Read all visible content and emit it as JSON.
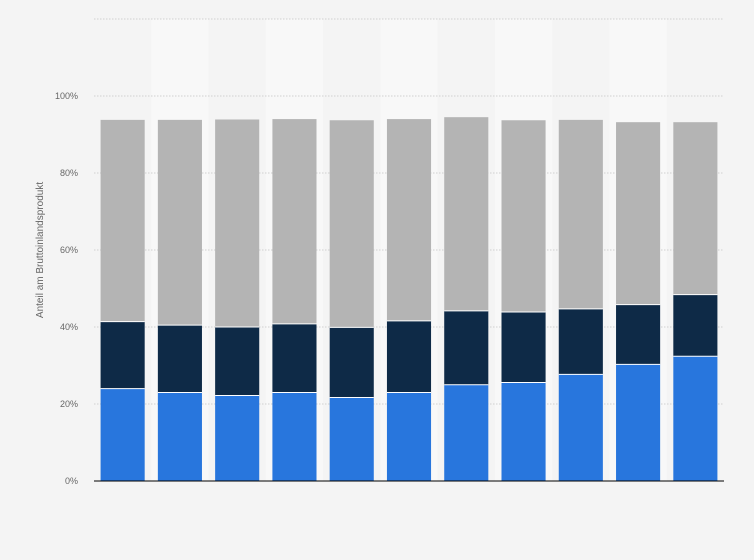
{
  "chart_data": {
    "type": "bar",
    "stacked": true,
    "orientation": "vertical",
    "title": "",
    "xlabel": "",
    "ylabel": "Anteil am Bruttoinlandsprodukt",
    "categories": [
      "",
      "",
      "",
      "",
      "",
      "",
      "",
      "",
      "",
      "",
      ""
    ],
    "y_ticks": [
      "0%",
      "20%",
      "40%",
      "60%",
      "80%",
      "100%"
    ],
    "ylim": [
      0,
      120
    ],
    "grid": true,
    "legend": "none",
    "series": [
      {
        "color": "#2876dd",
        "values": [
          24.0,
          23.0,
          22.2,
          23.0,
          21.7,
          23.0,
          25.0,
          25.6,
          27.7,
          30.3,
          32.4
        ]
      },
      {
        "color": "#0e2a47",
        "values": [
          17.4,
          17.5,
          17.8,
          17.8,
          18.2,
          18.6,
          19.2,
          18.3,
          17.0,
          15.5,
          16.0
        ]
      },
      {
        "color": "#b4b4b4",
        "values": [
          52.4,
          53.3,
          53.9,
          53.2,
          53.8,
          52.4,
          50.3,
          49.8,
          49.1,
          47.4,
          44.8
        ]
      }
    ]
  }
}
